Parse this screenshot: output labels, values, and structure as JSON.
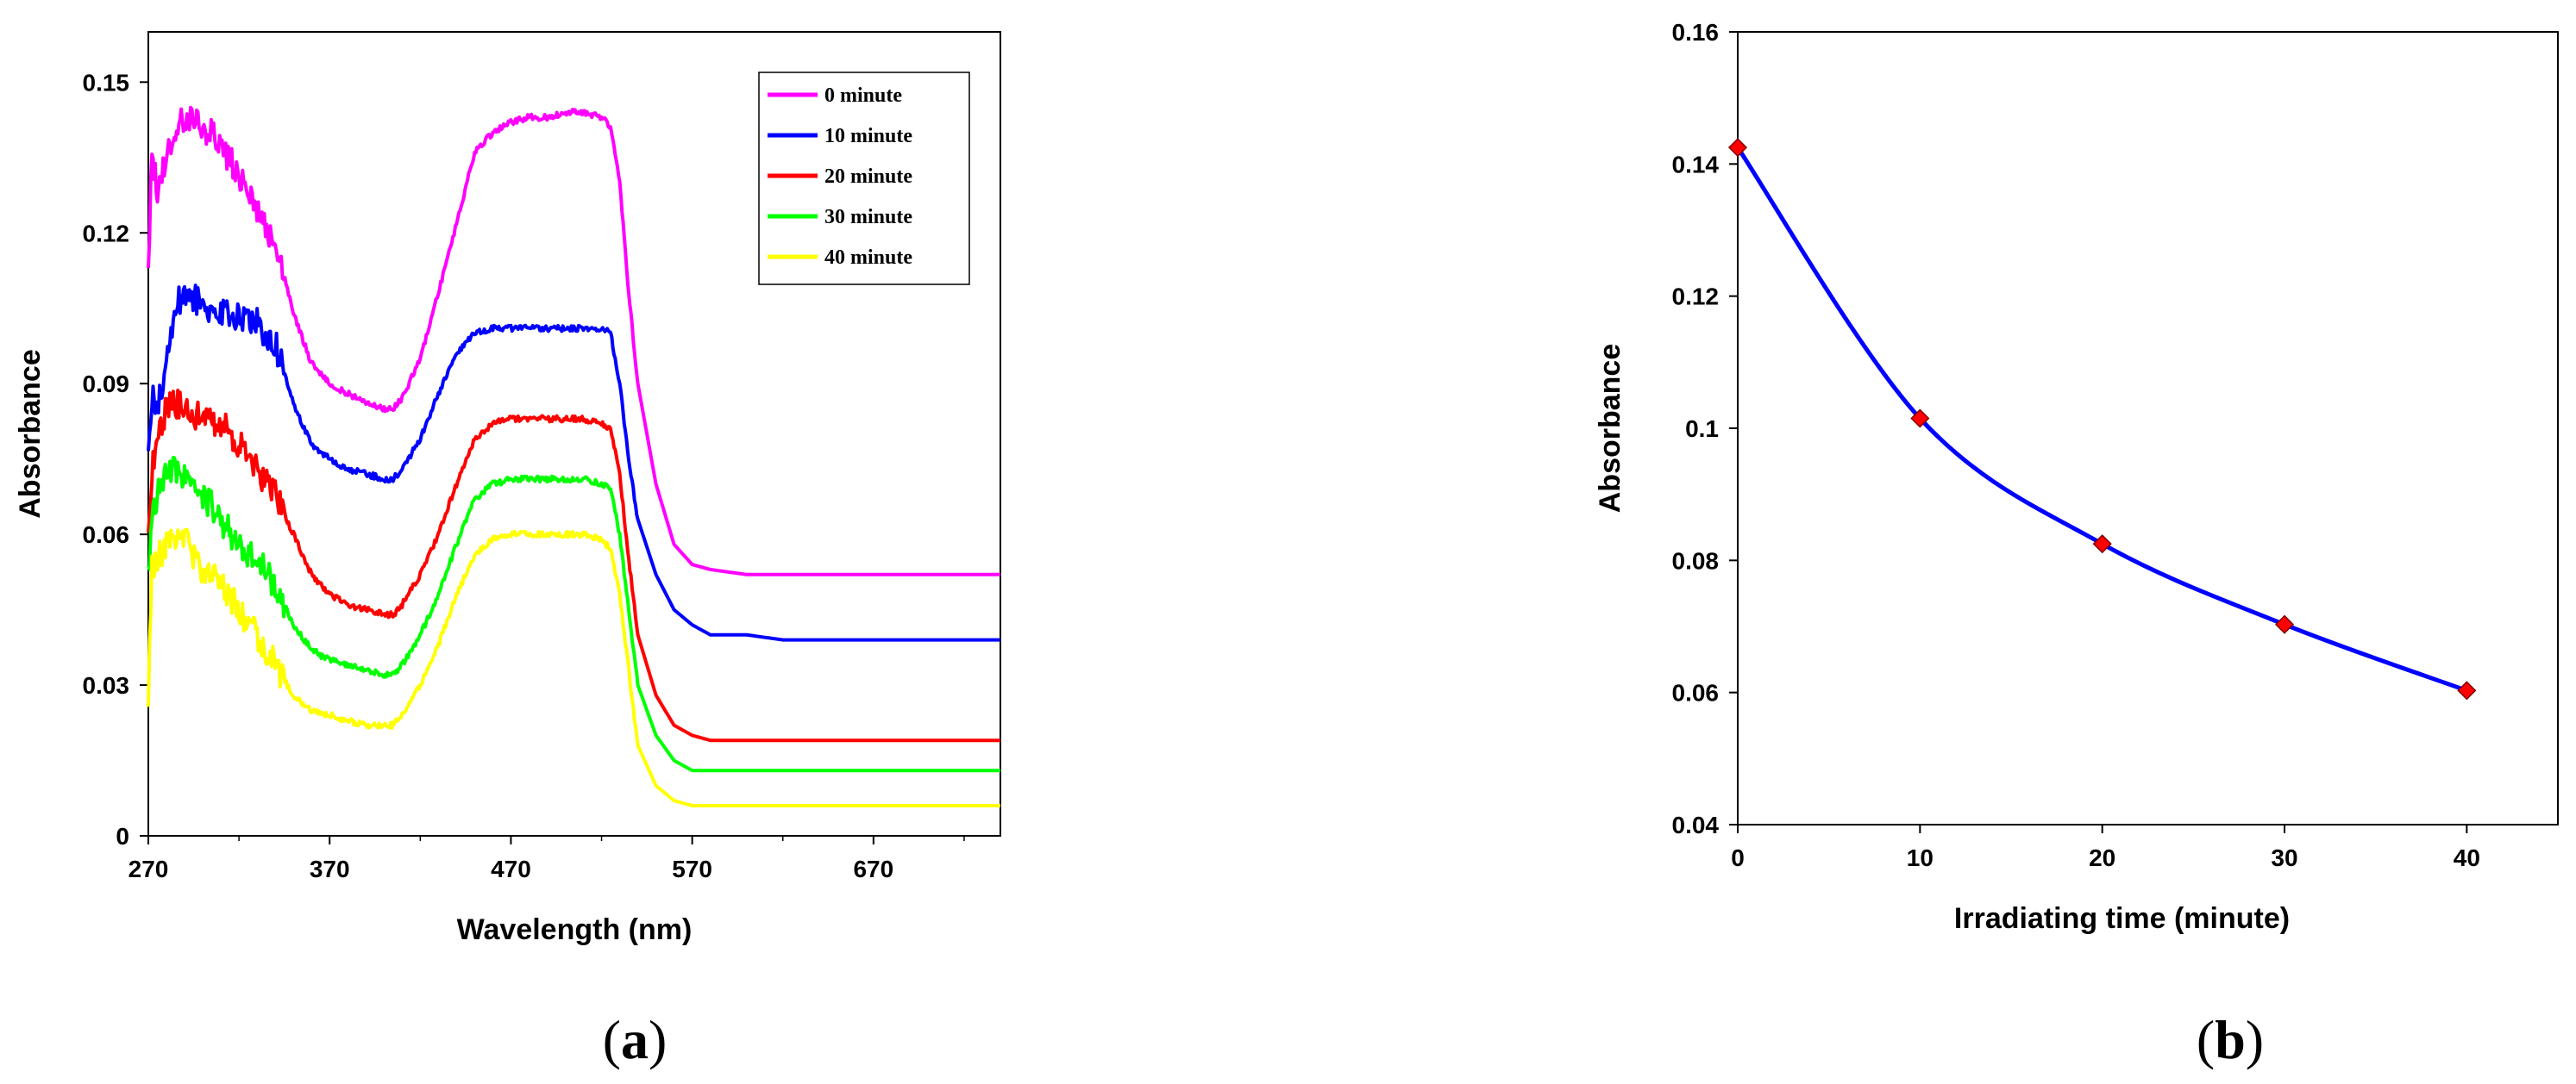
{
  "chart_data": [
    {
      "type": "line",
      "panel_label": "a",
      "xlabel": "Wavelength  (nm)",
      "ylabel": "Absorbance",
      "xlim": [
        270,
        740
      ],
      "ylim": [
        0,
        0.16
      ],
      "xticks": [
        270,
        370,
        470,
        570,
        670
      ],
      "yticks": [
        0,
        0.03,
        0.06,
        0.09,
        0.12,
        0.15
      ],
      "ytick_labels": [
        "0",
        "0.03",
        "0.06",
        "0.09",
        "0.12",
        "0.15"
      ],
      "legend_position": "top-right",
      "grid": false,
      "series": [
        {
          "name": "0 minute",
          "color": "#ff00ff",
          "x": [
            270,
            272,
            275,
            280,
            285,
            290,
            300,
            310,
            320,
            330,
            340,
            350,
            360,
            370,
            380,
            390,
            400,
            405,
            410,
            420,
            430,
            440,
            450,
            460,
            470,
            480,
            490,
            500,
            510,
            520,
            525,
            530,
            535,
            540,
            550,
            560,
            570,
            580,
            600,
            620,
            650,
            700,
            740
          ],
          "y": [
            0.113,
            0.136,
            0.128,
            0.135,
            0.141,
            0.143,
            0.141,
            0.138,
            0.131,
            0.124,
            0.118,
            0.104,
            0.094,
            0.09,
            0.088,
            0.086,
            0.085,
            0.085,
            0.087,
            0.095,
            0.108,
            0.122,
            0.136,
            0.14,
            0.142,
            0.143,
            0.143,
            0.144,
            0.144,
            0.143,
            0.141,
            0.13,
            0.108,
            0.09,
            0.07,
            0.058,
            0.054,
            0.053,
            0.052,
            0.052,
            0.052,
            0.052,
            0.052
          ]
        },
        {
          "name": "10 minute",
          "color": "#0000ff",
          "x": [
            270,
            272,
            275,
            280,
            285,
            290,
            300,
            310,
            320,
            330,
            340,
            350,
            360,
            370,
            380,
            390,
            400,
            405,
            410,
            420,
            430,
            440,
            450,
            460,
            470,
            480,
            490,
            500,
            510,
            520,
            525,
            530,
            535,
            540,
            550,
            560,
            570,
            580,
            600,
            620,
            650,
            700,
            740
          ],
          "y": [
            0.078,
            0.088,
            0.085,
            0.095,
            0.106,
            0.108,
            0.106,
            0.104,
            0.103,
            0.102,
            0.098,
            0.086,
            0.078,
            0.075,
            0.073,
            0.072,
            0.071,
            0.071,
            0.073,
            0.079,
            0.088,
            0.096,
            0.1,
            0.101,
            0.101,
            0.101,
            0.101,
            0.101,
            0.101,
            0.101,
            0.1,
            0.09,
            0.075,
            0.063,
            0.052,
            0.045,
            0.042,
            0.04,
            0.04,
            0.039,
            0.039,
            0.039,
            0.039
          ]
        },
        {
          "name": "20 minute",
          "color": "#ff0000",
          "x": [
            270,
            272,
            275,
            280,
            285,
            290,
            300,
            310,
            320,
            330,
            340,
            350,
            360,
            370,
            380,
            390,
            400,
            405,
            410,
            420,
            430,
            440,
            450,
            460,
            470,
            480,
            490,
            500,
            510,
            520,
            525,
            530,
            535,
            540,
            550,
            560,
            570,
            580,
            600,
            620,
            650,
            700,
            740
          ],
          "y": [
            0.062,
            0.072,
            0.08,
            0.085,
            0.086,
            0.085,
            0.083,
            0.082,
            0.078,
            0.073,
            0.068,
            0.06,
            0.052,
            0.048,
            0.046,
            0.045,
            0.044,
            0.044,
            0.046,
            0.052,
            0.06,
            0.07,
            0.079,
            0.082,
            0.083,
            0.083,
            0.083,
            0.083,
            0.083,
            0.082,
            0.081,
            0.072,
            0.055,
            0.04,
            0.028,
            0.022,
            0.02,
            0.019,
            0.019,
            0.019,
            0.019,
            0.019,
            0.019
          ]
        },
        {
          "name": "30 minute",
          "color": "#00ff00",
          "x": [
            270,
            272,
            275,
            280,
            285,
            290,
            300,
            310,
            320,
            330,
            340,
            350,
            360,
            370,
            380,
            390,
            400,
            405,
            410,
            420,
            430,
            440,
            450,
            460,
            470,
            480,
            490,
            500,
            510,
            520,
            525,
            530,
            535,
            540,
            550,
            560,
            570,
            580,
            600,
            620,
            650,
            700,
            740
          ],
          "y": [
            0.052,
            0.064,
            0.068,
            0.072,
            0.073,
            0.072,
            0.068,
            0.063,
            0.058,
            0.055,
            0.05,
            0.042,
            0.037,
            0.035,
            0.034,
            0.033,
            0.032,
            0.032,
            0.034,
            0.04,
            0.048,
            0.058,
            0.067,
            0.07,
            0.071,
            0.071,
            0.071,
            0.071,
            0.071,
            0.07,
            0.069,
            0.06,
            0.045,
            0.03,
            0.02,
            0.015,
            0.013,
            0.013,
            0.013,
            0.013,
            0.013,
            0.013,
            0.013
          ]
        },
        {
          "name": "40 minute",
          "color": "#ffff00",
          "x": [
            270,
            272,
            275,
            280,
            285,
            290,
            300,
            310,
            320,
            330,
            340,
            350,
            360,
            370,
            380,
            390,
            400,
            405,
            410,
            420,
            430,
            440,
            450,
            460,
            470,
            480,
            490,
            500,
            510,
            520,
            525,
            530,
            535,
            540,
            550,
            560,
            570,
            580,
            600,
            620,
            650,
            700,
            740
          ],
          "y": [
            0.027,
            0.053,
            0.055,
            0.058,
            0.06,
            0.059,
            0.053,
            0.05,
            0.045,
            0.04,
            0.034,
            0.028,
            0.025,
            0.024,
            0.023,
            0.022,
            0.022,
            0.022,
            0.024,
            0.03,
            0.038,
            0.048,
            0.056,
            0.059,
            0.06,
            0.06,
            0.06,
            0.06,
            0.06,
            0.059,
            0.057,
            0.048,
            0.033,
            0.018,
            0.01,
            0.007,
            0.006,
            0.006,
            0.006,
            0.006,
            0.006,
            0.006,
            0.006
          ]
        }
      ]
    },
    {
      "type": "line",
      "panel_label": "b",
      "xlabel": "Irradiating time (minute)",
      "ylabel": "Absorbance",
      "xlim": [
        0,
        45
      ],
      "ylim": [
        0.04,
        0.16
      ],
      "xticks": [
        0,
        10,
        20,
        30,
        40
      ],
      "yticks": [
        0.04,
        0.06,
        0.08,
        0.1,
        0.12,
        0.14,
        0.16
      ],
      "ytick_labels": [
        "0.04",
        "0.06",
        "0.08",
        "0.1",
        "0.12",
        "0.14",
        "0.16"
      ],
      "grid": false,
      "line_color": "#0000ff",
      "marker_color": "#ff0000",
      "x": [
        0,
        10,
        20,
        30,
        40
      ],
      "y": [
        0.1425,
        0.1015,
        0.0825,
        0.0703,
        0.0603
      ]
    }
  ]
}
